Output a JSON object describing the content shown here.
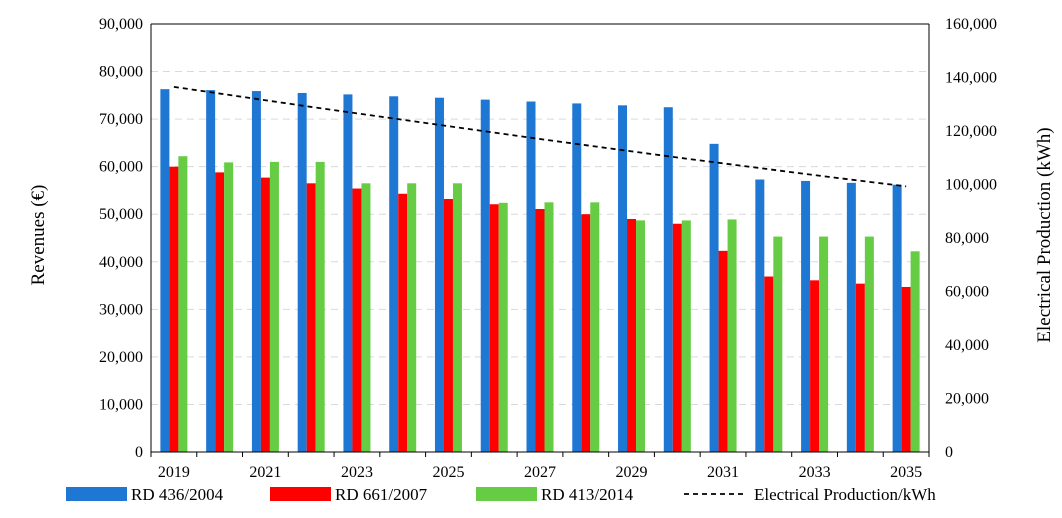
{
  "chart_data": {
    "type": "bar",
    "categories": [
      "2019",
      "2020",
      "2021",
      "2022",
      "2023",
      "2024",
      "2025",
      "2026",
      "2027",
      "2028",
      "2029",
      "2030",
      "2031",
      "2032",
      "2033",
      "2034",
      "2035"
    ],
    "x_tick_labels": [
      "2019",
      "2021",
      "2023",
      "2025",
      "2027",
      "2029",
      "2031",
      "2033",
      "2035"
    ],
    "series": [
      {
        "name": "RD 436/2004",
        "type": "bar",
        "axis": "left",
        "color": "#1f77d4",
        "values": [
          76300,
          76100,
          75900,
          75500,
          75200,
          74800,
          74500,
          74100,
          73700,
          73300,
          72900,
          72500,
          64800,
          57300,
          57000,
          56600,
          56200
        ]
      },
      {
        "name": "RD 661/2007",
        "type": "bar",
        "axis": "left",
        "color": "#ff0000",
        "values": [
          60000,
          58800,
          57700,
          56500,
          55400,
          54300,
          53200,
          52100,
          51100,
          50000,
          49000,
          48000,
          42300,
          36900,
          36100,
          35400,
          34700
        ]
      },
      {
        "name": "RD 413/2014",
        "type": "bar",
        "axis": "left",
        "color": "#66cc44",
        "values": [
          62200,
          60900,
          61000,
          61000,
          56500,
          56500,
          56500,
          52400,
          52500,
          52500,
          48700,
          48700,
          48900,
          45300,
          45300,
          45300,
          42200
        ]
      },
      {
        "name": "Electrical Production/kWh",
        "type": "line",
        "axis": "right",
        "style": "dashed",
        "color": "#000000",
        "values": [
          136500,
          134000,
          131500,
          129000,
          126600,
          124200,
          121800,
          119400,
          117000,
          114700,
          112400,
          110100,
          107900,
          105700,
          103500,
          101400,
          99300
        ]
      }
    ],
    "ylabel": "Revenues (€)",
    "y2label": "Electrical Production (kWh)",
    "ylim": [
      0,
      90000
    ],
    "y2lim": [
      0,
      160000
    ],
    "yticks": [
      "0",
      "10,000",
      "20,000",
      "30,000",
      "40,000",
      "50,000",
      "60,000",
      "70,000",
      "80,000",
      "90,000"
    ],
    "y2ticks": [
      "0",
      "20,000",
      "40,000",
      "60,000",
      "80,000",
      "100,000",
      "120,000",
      "140,000",
      "160,000"
    ],
    "grid": true,
    "legend": "bottom"
  }
}
